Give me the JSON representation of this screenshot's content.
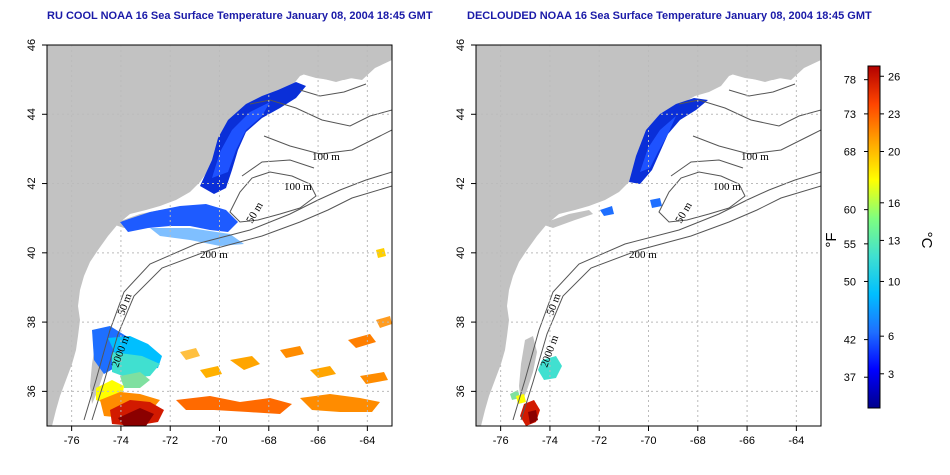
{
  "panels": [
    {
      "title": "RU COOL NOAA 16 Sea Surface Temperature January 08, 2004 18:45 GMT",
      "contour_labels": [
        "100 m",
        "100 m",
        "50 m",
        "200 m",
        "50 m",
        "2000 m"
      ]
    },
    {
      "title": "DECLOUDED NOAA 16 Sea Surface Temperature January 08, 2004 18:45 GMT",
      "contour_labels": [
        "100 m",
        "100 m",
        "50 m",
        "200 m",
        "50 m",
        "2000 m"
      ]
    }
  ],
  "axes": {
    "x_ticks": [
      "-76",
      "-74",
      "-72",
      "-70",
      "-68",
      "-66",
      "-64"
    ],
    "y_ticks": [
      "36",
      "38",
      "40",
      "42",
      "44",
      "46"
    ],
    "lon_range": [
      -77,
      -63
    ],
    "lat_range": [
      35,
      46
    ]
  },
  "colorbar": {
    "f_label": "°F",
    "c_label": "°C",
    "f_ticks": [
      "78",
      "73",
      "68",
      "60",
      "55",
      "50",
      "42",
      "37"
    ],
    "c_ticks": [
      "26",
      "23",
      "20",
      "16",
      "13",
      "10",
      "6",
      "3"
    ],
    "colors": [
      "#00008b",
      "#0000ff",
      "#1e6fff",
      "#00bfff",
      "#40e0d0",
      "#7fff7f",
      "#ffff00",
      "#ffa500",
      "#ff4500",
      "#b20000"
    ]
  },
  "colors": {
    "land": "#c2c2c2",
    "title": "#1a1aa8",
    "grid": "#bbbbbb"
  }
}
